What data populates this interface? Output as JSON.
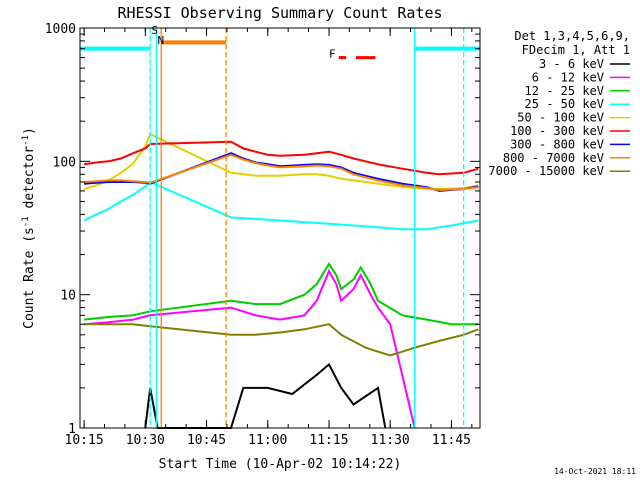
{
  "chart_data": {
    "type": "line",
    "title": "RHESSI Observing Summary Count Rates",
    "xlabel": "Start Time (10-Apr-02 10:14:22)",
    "ylabel": "Count Rate (s⁻¹ detector⁻¹)",
    "ylabel_parts": {
      "a": "Count Rate (s",
      "b": "-1",
      "c": " detector",
      "d": "-1",
      "e": ")"
    },
    "y_scale": "log",
    "ylim": [
      1,
      1000
    ],
    "xlim": [
      10.2333,
      11.8667
    ],
    "x_ticks": [
      {
        "v": 10.25,
        "label": "10:15"
      },
      {
        "v": 10.5,
        "label": "10:30"
      },
      {
        "v": 10.75,
        "label": "10:45"
      },
      {
        "v": 11.0,
        "label": "11:00"
      },
      {
        "v": 11.25,
        "label": "11:15"
      },
      {
        "v": 11.5,
        "label": "11:30"
      },
      {
        "v": 11.75,
        "label": "11:45"
      }
    ],
    "y_ticks": [
      {
        "v": 1,
        "label": "1"
      },
      {
        "v": 10,
        "label": "10"
      },
      {
        "v": 100,
        "label": "100"
      },
      {
        "v": 1000,
        "label": "1000"
      }
    ],
    "legend_header": [
      "Det 1,3,4,5,6,9,",
      "FDecim 1, Att 1"
    ],
    "legend_position": "right",
    "timestamp": "14-Oct-2021 18:11",
    "series": [
      {
        "name": "3 - 6 keV",
        "color": "#000000",
        "points": [
          [
            10.5,
            1
          ],
          [
            10.52,
            2
          ],
          [
            10.55,
            1
          ],
          [
            10.85,
            1
          ],
          [
            10.9,
            2
          ],
          [
            11.0,
            2
          ],
          [
            11.1,
            1.8
          ],
          [
            11.2,
            2.5
          ],
          [
            11.25,
            3
          ],
          [
            11.3,
            2
          ],
          [
            11.35,
            1.5
          ],
          [
            11.45,
            2
          ],
          [
            11.48,
            1
          ]
        ]
      },
      {
        "name": "6 - 12 keV",
        "color": "#ff00ff",
        "points": [
          [
            10.25,
            6
          ],
          [
            10.35,
            6.2
          ],
          [
            10.45,
            6.5
          ],
          [
            10.52,
            7
          ],
          [
            10.85,
            8
          ],
          [
            10.95,
            7
          ],
          [
            11.05,
            6.5
          ],
          [
            11.15,
            7
          ],
          [
            11.2,
            9
          ],
          [
            11.25,
            15
          ],
          [
            11.28,
            12
          ],
          [
            11.3,
            9
          ],
          [
            11.35,
            11
          ],
          [
            11.38,
            14
          ],
          [
            11.42,
            10
          ],
          [
            11.45,
            8
          ],
          [
            11.5,
            6
          ],
          [
            11.6,
            1
          ]
        ]
      },
      {
        "name": "12 - 25 keV",
        "color": "#00cc00",
        "points": [
          [
            10.25,
            6.5
          ],
          [
            10.35,
            6.8
          ],
          [
            10.45,
            7
          ],
          [
            10.52,
            7.5
          ],
          [
            10.85,
            9
          ],
          [
            10.95,
            8.5
          ],
          [
            11.05,
            8.5
          ],
          [
            11.15,
            10
          ],
          [
            11.2,
            12
          ],
          [
            11.25,
            17
          ],
          [
            11.28,
            14
          ],
          [
            11.3,
            11
          ],
          [
            11.35,
            13
          ],
          [
            11.38,
            16
          ],
          [
            11.42,
            12
          ],
          [
            11.45,
            9
          ],
          [
            11.55,
            7
          ],
          [
            11.65,
            6.5
          ],
          [
            11.75,
            6
          ],
          [
            11.86,
            6
          ]
        ]
      },
      {
        "name": "25 - 50 keV",
        "color": "#00ffff",
        "points": [
          [
            10.25,
            36
          ],
          [
            10.3,
            40
          ],
          [
            10.35,
            44
          ],
          [
            10.4,
            50
          ],
          [
            10.45,
            56
          ],
          [
            10.5,
            65
          ],
          [
            10.52,
            70
          ],
          [
            10.85,
            38
          ],
          [
            10.95,
            37
          ],
          [
            11.05,
            36
          ],
          [
            11.15,
            35
          ],
          [
            11.25,
            34
          ],
          [
            11.35,
            33
          ],
          [
            11.45,
            32
          ],
          [
            11.55,
            31
          ],
          [
            11.65,
            31
          ],
          [
            11.75,
            33
          ],
          [
            11.86,
            36
          ]
        ]
      },
      {
        "name": "50 - 100 keV",
        "color": "#e0d000",
        "points": [
          [
            10.25,
            62
          ],
          [
            10.3,
            66
          ],
          [
            10.35,
            72
          ],
          [
            10.4,
            82
          ],
          [
            10.45,
            96
          ],
          [
            10.5,
            130
          ],
          [
            10.52,
            160
          ],
          [
            10.85,
            82
          ],
          [
            10.95,
            78
          ],
          [
            11.05,
            78
          ],
          [
            11.15,
            80
          ],
          [
            11.2,
            80
          ],
          [
            11.25,
            78
          ],
          [
            11.3,
            74
          ],
          [
            11.4,
            70
          ],
          [
            11.5,
            66
          ],
          [
            11.6,
            63
          ],
          [
            11.7,
            62
          ],
          [
            11.8,
            63
          ],
          [
            11.86,
            66
          ]
        ]
      },
      {
        "name": "100 - 300 keV",
        "color": "#ff0000",
        "points": [
          [
            10.25,
            95
          ],
          [
            10.3,
            98
          ],
          [
            10.35,
            100
          ],
          [
            10.4,
            105
          ],
          [
            10.45,
            115
          ],
          [
            10.5,
            125
          ],
          [
            10.52,
            135
          ],
          [
            10.85,
            140
          ],
          [
            10.9,
            125
          ],
          [
            10.95,
            118
          ],
          [
            11.0,
            112
          ],
          [
            11.05,
            110
          ],
          [
            11.15,
            112
          ],
          [
            11.2,
            115
          ],
          [
            11.25,
            118
          ],
          [
            11.3,
            112
          ],
          [
            11.35,
            105
          ],
          [
            11.45,
            95
          ],
          [
            11.55,
            88
          ],
          [
            11.65,
            82
          ],
          [
            11.7,
            80
          ],
          [
            11.8,
            82
          ],
          [
            11.86,
            88
          ]
        ]
      },
      {
        "name": "300 - 800 keV",
        "color": "#0000ff",
        "points": [
          [
            10.25,
            68
          ],
          [
            10.3,
            69
          ],
          [
            10.35,
            70
          ],
          [
            10.4,
            70
          ],
          [
            10.45,
            70
          ],
          [
            10.5,
            69
          ],
          [
            10.52,
            68
          ],
          [
            10.85,
            115
          ],
          [
            10.9,
            105
          ],
          [
            10.95,
            98
          ],
          [
            11.0,
            95
          ],
          [
            11.05,
            92
          ],
          [
            11.15,
            94
          ],
          [
            11.2,
            95
          ],
          [
            11.25,
            94
          ],
          [
            11.3,
            90
          ],
          [
            11.35,
            82
          ],
          [
            11.45,
            74
          ],
          [
            11.55,
            68
          ],
          [
            11.65,
            64
          ],
          [
            11.7,
            60
          ],
          [
            11.8,
            62
          ],
          [
            11.86,
            65
          ]
        ]
      },
      {
        "name": "800 - 7000 keV",
        "color": "#ff8000",
        "points": [
          [
            10.25,
            70
          ],
          [
            10.3,
            71
          ],
          [
            10.35,
            72
          ],
          [
            10.4,
            72
          ],
          [
            10.45,
            71
          ],
          [
            10.5,
            70
          ],
          [
            10.52,
            69
          ],
          [
            10.85,
            112
          ],
          [
            10.9,
            103
          ],
          [
            10.95,
            97
          ],
          [
            11.0,
            93
          ],
          [
            11.05,
            90
          ],
          [
            11.15,
            92
          ],
          [
            11.2,
            93
          ],
          [
            11.25,
            92
          ],
          [
            11.3,
            88
          ],
          [
            11.35,
            80
          ],
          [
            11.45,
            72
          ],
          [
            11.55,
            66
          ],
          [
            11.65,
            63
          ],
          [
            11.7,
            61
          ],
          [
            11.8,
            62
          ],
          [
            11.86,
            64
          ]
        ]
      },
      {
        "name": "7000 - 15000 keV",
        "color": "#808000",
        "points": [
          [
            10.25,
            6
          ],
          [
            10.35,
            6
          ],
          [
            10.45,
            6
          ],
          [
            10.52,
            5.8
          ],
          [
            10.85,
            5
          ],
          [
            10.95,
            5
          ],
          [
            11.05,
            5.2
          ],
          [
            11.15,
            5.5
          ],
          [
            11.25,
            6
          ],
          [
            11.3,
            5
          ],
          [
            11.4,
            4
          ],
          [
            11.5,
            3.5
          ],
          [
            11.6,
            4
          ],
          [
            11.7,
            4.5
          ],
          [
            11.8,
            5
          ],
          [
            11.86,
            5.5
          ]
        ]
      }
    ],
    "flag_bars": [
      {
        "color": "#00ffff",
        "style": "solid",
        "y": 700,
        "x": [
          10.2333,
          10.52
        ]
      },
      {
        "color": "#00ffff",
        "style": "solid",
        "y": 700,
        "x": [
          11.6,
          11.8667
        ]
      },
      {
        "color": "#ff8000",
        "style": "solid",
        "y": 780,
        "x": [
          10.565,
          10.83
        ]
      }
    ],
    "vlines": [
      {
        "x": 10.52,
        "color": "#00ffff",
        "style": "dashed"
      },
      {
        "x": 10.545,
        "color": "#00ffff",
        "style": "solid"
      },
      {
        "x": 10.565,
        "color": "#ff8000",
        "style": "solid"
      },
      {
        "x": 10.83,
        "color": "#ff8000",
        "style": "dashed"
      },
      {
        "x": 11.6,
        "color": "#00ffff",
        "style": "solid"
      },
      {
        "x": 11.8,
        "color": "#00ffff",
        "style": "dashed"
      }
    ],
    "annotations": [
      {
        "text": "S",
        "x": 10.525,
        "y": 900,
        "color": "#ff8000"
      },
      {
        "text": "N",
        "x": 10.55,
        "y": 760,
        "color": "#00ffff"
      },
      {
        "text": "F",
        "x": 11.25,
        "y": 600,
        "color": "#ff0000"
      }
    ],
    "f_segments": [
      {
        "x": [
          11.29,
          11.32
        ],
        "y": 600,
        "color": "#ff0000"
      },
      {
        "x": [
          11.36,
          11.44
        ],
        "y": 600,
        "color": "#ff0000"
      }
    ]
  }
}
